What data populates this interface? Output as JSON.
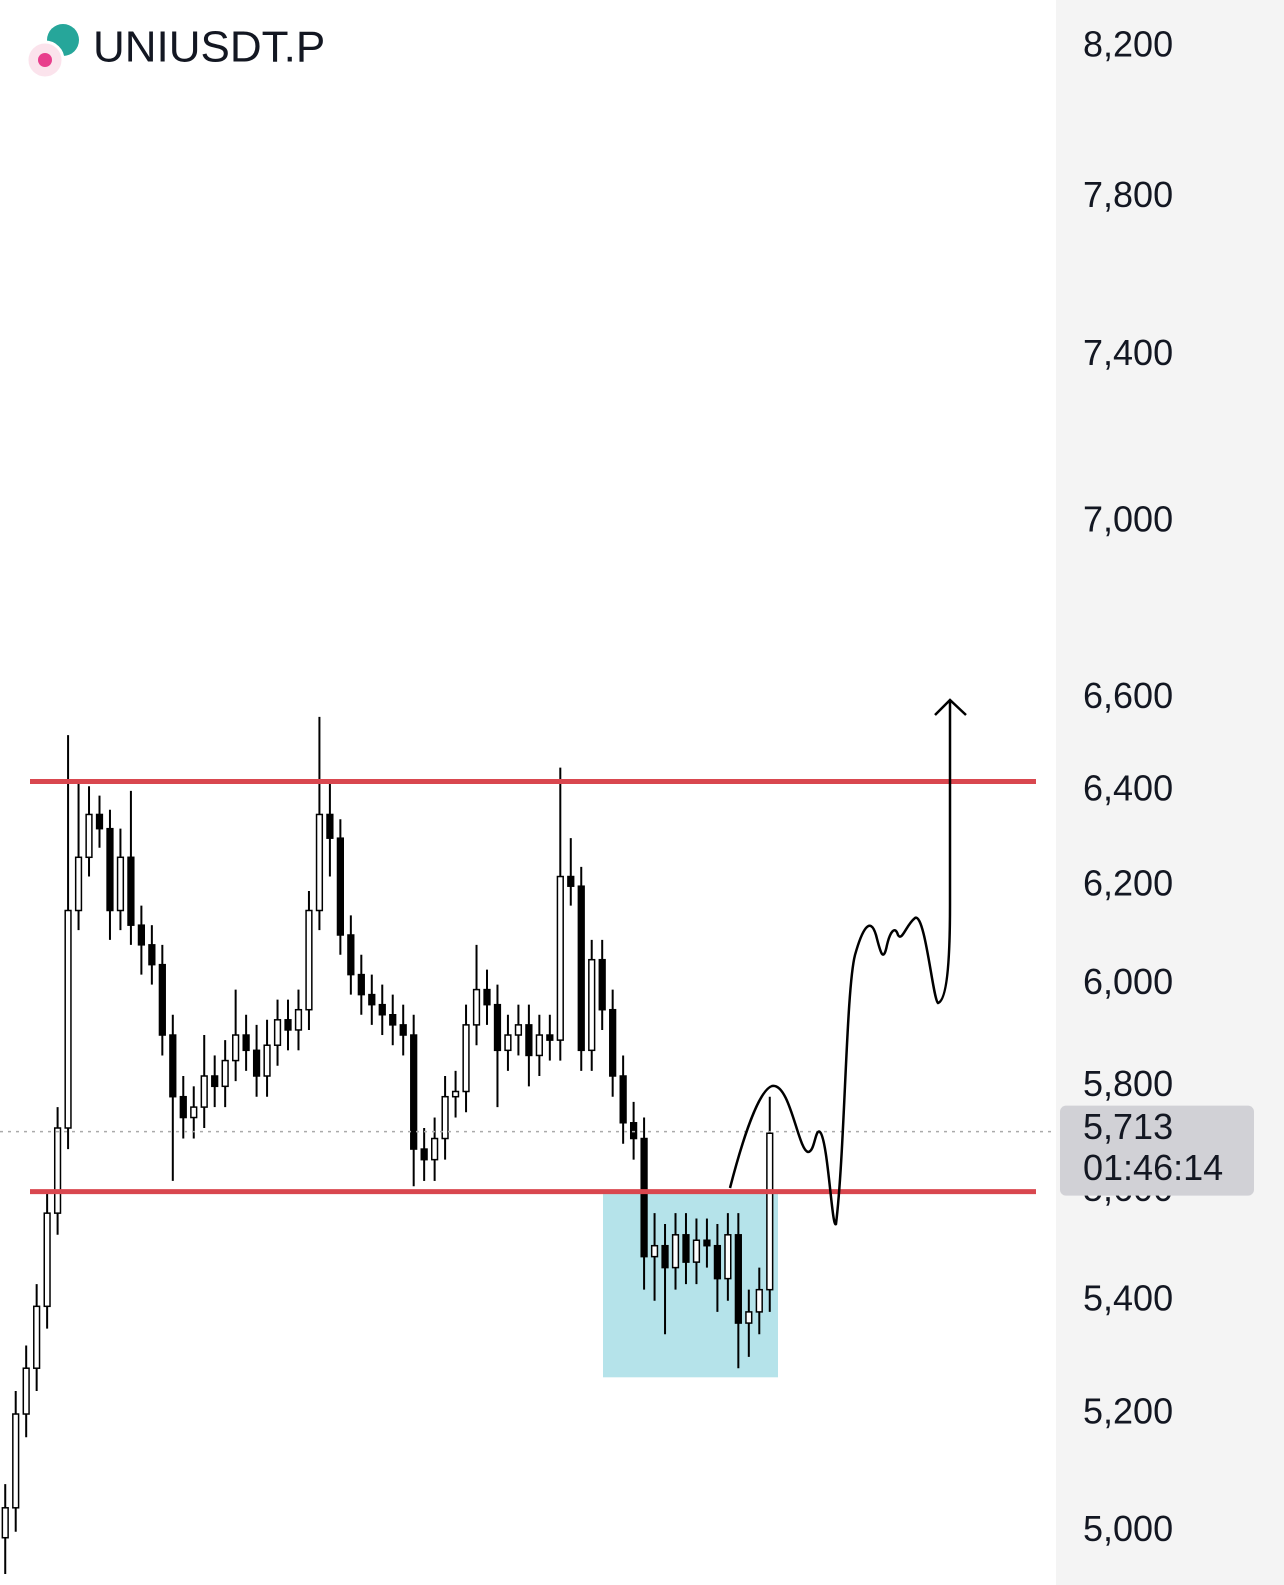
{
  "chart_data": {
    "type": "candlestick",
    "title": "UNIUSDT.P",
    "log_scale": true,
    "ylim": [
      4912,
      8330
    ],
    "yticks": [
      {
        "value": 8200,
        "label": "8,200"
      },
      {
        "value": 7800,
        "label": "7,800"
      },
      {
        "value": 7400,
        "label": "7,400"
      },
      {
        "value": 7000,
        "label": "7,000"
      },
      {
        "value": 6600,
        "label": "6,600"
      },
      {
        "value": 6400,
        "label": "6,400"
      },
      {
        "value": 6200,
        "label": "6,200"
      },
      {
        "value": 6000,
        "label": "6,000"
      },
      {
        "value": 5800,
        "label": "5,800"
      },
      {
        "value": 5600,
        "label": "5,600"
      },
      {
        "value": 5400,
        "label": "5,400"
      },
      {
        "value": 5200,
        "label": "5,200"
      },
      {
        "value": 5000,
        "label": "5,000"
      }
    ],
    "current_price": {
      "value": 5713,
      "label": "5,713"
    },
    "countdown": "01:46:14",
    "levels": [
      6420,
      5600
    ],
    "level_color": "#d9474f",
    "zone": {
      "top": 5600,
      "bottom": 5264,
      "color": "#b5e3ea"
    },
    "up_color": "#ffffff",
    "down_color": "#000000",
    "open": [
      4990,
      5040,
      5200,
      5280,
      5390,
      5560,
      5720,
      6150,
      6260,
      6350,
      6320,
      6150,
      6260,
      6120,
      6080,
      6040,
      5900,
      5780,
      5740,
      5760,
      5820,
      5800,
      5850,
      5900,
      5870,
      5820,
      5880,
      5930,
      5910,
      5950,
      6150,
      6350,
      6300,
      6100,
      6020,
      5980,
      5960,
      5940,
      5920,
      5900,
      5680,
      5660,
      5700,
      5780,
      5790,
      5920,
      5990,
      5960,
      5870,
      5900,
      5920,
      5860,
      5900,
      5890,
      6220,
      6200,
      5870,
      6050,
      5950,
      5820,
      5730,
      5700,
      5480,
      5500,
      5460,
      5520,
      5470,
      5510,
      5500,
      5440,
      5520,
      5360,
      5380,
      5420
    ],
    "high": [
      5080,
      5240,
      5320,
      5430,
      5600,
      5760,
      6520,
      6420,
      6410,
      6390,
      6360,
      6320,
      6400,
      6160,
      6120,
      6080,
      5940,
      5820,
      5800,
      5900,
      5860,
      5890,
      5990,
      5940,
      5920,
      5930,
      5970,
      5970,
      5990,
      6190,
      6560,
      6420,
      6340,
      6140,
      6060,
      6020,
      6000,
      5980,
      5960,
      5940,
      5720,
      5740,
      5820,
      5830,
      5960,
      6080,
      6030,
      6000,
      5940,
      5960,
      5960,
      5940,
      5940,
      6450,
      6300,
      6240,
      6090,
      6090,
      5990,
      5860,
      5770,
      5740,
      5560,
      5540,
      5560,
      5560,
      5550,
      5550,
      5540,
      5560,
      5560,
      5420,
      5460,
      5780
    ],
    "low": [
      4930,
      5000,
      5160,
      5240,
      5350,
      5520,
      5680,
      6110,
      6220,
      6280,
      6090,
      6110,
      6080,
      6020,
      6000,
      5860,
      5620,
      5700,
      5700,
      5720,
      5760,
      5760,
      5810,
      5830,
      5780,
      5780,
      5840,
      5870,
      5870,
      5910,
      6110,
      6220,
      6060,
      5980,
      5940,
      5920,
      5900,
      5880,
      5860,
      5610,
      5620,
      5620,
      5660,
      5740,
      5750,
      5880,
      5920,
      5760,
      5830,
      5860,
      5800,
      5820,
      5850,
      5850,
      6160,
      5830,
      5830,
      5910,
      5780,
      5690,
      5660,
      5420,
      5400,
      5340,
      5420,
      5430,
      5430,
      5460,
      5380,
      5400,
      5280,
      5300,
      5340,
      5380
    ],
    "close": [
      5040,
      5200,
      5280,
      5390,
      5560,
      5720,
      6150,
      6260,
      6350,
      6320,
      6150,
      6260,
      6120,
      6080,
      6040,
      5900,
      5780,
      5740,
      5760,
      5820,
      5800,
      5850,
      5900,
      5870,
      5820,
      5880,
      5930,
      5910,
      5950,
      6150,
      6350,
      6300,
      6100,
      6020,
      5980,
      5960,
      5940,
      5920,
      5900,
      5680,
      5660,
      5700,
      5780,
      5790,
      5920,
      5990,
      5960,
      5870,
      5900,
      5920,
      5860,
      5900,
      5890,
      6220,
      6200,
      5870,
      6050,
      5950,
      5820,
      5730,
      5700,
      5480,
      5500,
      5460,
      5520,
      5470,
      5510,
      5500,
      5440,
      5520,
      5360,
      5380,
      5420,
      5710
    ]
  }
}
